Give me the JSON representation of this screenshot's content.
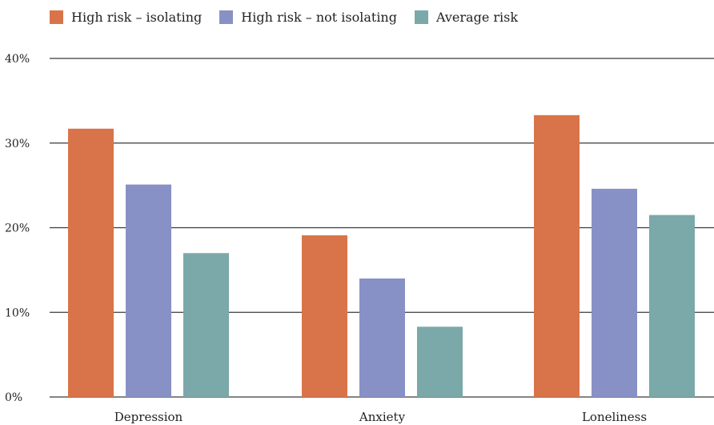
{
  "chart_data": {
    "type": "bar",
    "title": "",
    "xlabel": "",
    "ylabel": "",
    "categories": [
      "Depression",
      "Anxiety",
      "Loneliness"
    ],
    "series": [
      {
        "name": "High risk – isolating",
        "color": "#D9744A",
        "values": [
          31.7,
          19.1,
          33.3
        ]
      },
      {
        "name": "High risk – not isolating",
        "color": "#8891C5",
        "values": [
          25.1,
          14.0,
          24.6
        ]
      },
      {
        "name": "Average risk",
        "color": "#7BA8A8",
        "values": [
          17.0,
          8.3,
          21.5
        ]
      }
    ],
    "ylim": [
      0,
      40
    ],
    "yticks": [
      "0%",
      "10%",
      "20%",
      "30%",
      "40%"
    ],
    "grid": true,
    "legend_position": "top-left"
  }
}
